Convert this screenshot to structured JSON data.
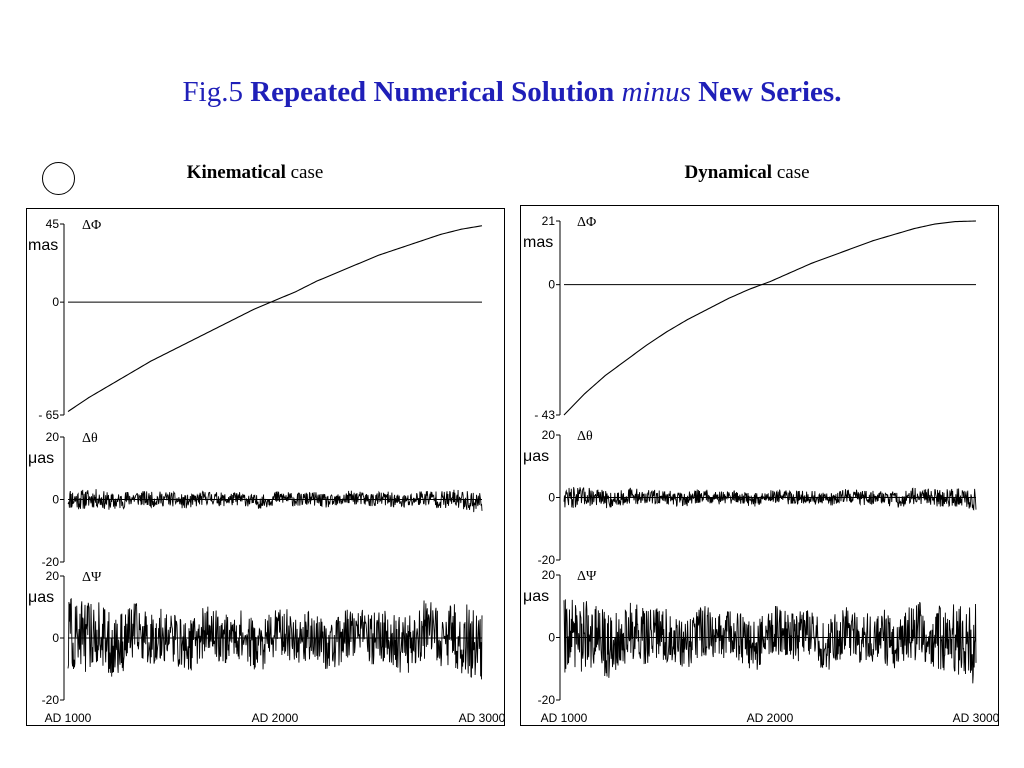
{
  "title": {
    "prefix": "Fig.5",
    "bold1": "Repeated Numerical Solution",
    "italic": "minus",
    "bold2": "New Series."
  },
  "cases": {
    "kinematical": {
      "bold": "Kinematical",
      "rest": "case"
    },
    "dynamical": {
      "bold": "Dynamical",
      "rest": "case"
    }
  },
  "chart_data": [
    {
      "type": "line",
      "panel": "Kinematical case",
      "series": [
        {
          "name": "ΔΦ",
          "unit": "mas",
          "ylim": [
            -65,
            45
          ],
          "yticks": [
            {
              "v": 45,
              "label": "45"
            },
            {
              "v": 0,
              "label": "0"
            },
            {
              "v": -65,
              "label": "- 65"
            }
          ],
          "x": [
            1000,
            1100,
            1200,
            1300,
            1400,
            1500,
            1600,
            1700,
            1800,
            1900,
            2000,
            2100,
            2200,
            2300,
            2400,
            2500,
            2600,
            2700,
            2800,
            2900,
            3000
          ],
          "y": [
            -63,
            -55,
            -48,
            -41,
            -34,
            -28,
            -22,
            -16,
            -10,
            -4,
            1,
            6,
            12,
            17,
            22,
            27,
            31,
            35,
            39,
            42,
            44
          ]
        },
        {
          "name": "Δθ",
          "unit": "μas",
          "ylim": [
            -20,
            20
          ],
          "noise_amplitude": 2.2,
          "yticks": [
            {
              "v": 20,
              "label": "20"
            },
            {
              "v": 0,
              "label": "0"
            },
            {
              "v": -20,
              "label": "-20"
            }
          ],
          "x": [
            1000,
            3000
          ],
          "y": [
            0,
            0
          ]
        },
        {
          "name": "ΔΨ",
          "unit": "μas",
          "ylim": [
            -20,
            20
          ],
          "noise_amplitude": 8,
          "yticks": [
            {
              "v": 20,
              "label": "20"
            },
            {
              "v": 0,
              "label": "0"
            },
            {
              "v": -20,
              "label": "-20"
            }
          ],
          "x": [
            1000,
            3000
          ],
          "y": [
            0,
            0
          ]
        }
      ],
      "xlim": [
        1000,
        3000
      ],
      "xticks": [
        {
          "v": 1000,
          "label": "AD 1000"
        },
        {
          "v": 2000,
          "label": "AD 2000"
        },
        {
          "v": 3000,
          "label": "AD 3000"
        }
      ]
    },
    {
      "type": "line",
      "panel": "Dynamical case",
      "series": [
        {
          "name": "ΔΦ",
          "unit": "mas",
          "ylim": [
            -43,
            21
          ],
          "yticks": [
            {
              "v": 21,
              "label": "21"
            },
            {
              "v": 0,
              "label": "0"
            },
            {
              "v": -43,
              "label": "- 43"
            }
          ],
          "x": [
            1000,
            1100,
            1200,
            1300,
            1400,
            1500,
            1600,
            1700,
            1800,
            1900,
            2000,
            2100,
            2200,
            2300,
            2400,
            2500,
            2600,
            2700,
            2800,
            2900,
            3000
          ],
          "y": [
            -43,
            -36,
            -30,
            -25,
            -20,
            -15.5,
            -11.5,
            -8,
            -4.5,
            -1.5,
            1,
            4,
            7,
            9.5,
            12,
            14.5,
            16.5,
            18.5,
            20,
            20.8,
            21
          ]
        },
        {
          "name": "Δθ",
          "unit": "μas",
          "ylim": [
            -20,
            20
          ],
          "noise_amplitude": 2.2,
          "yticks": [
            {
              "v": 20,
              "label": "20"
            },
            {
              "v": 0,
              "label": "0"
            },
            {
              "v": -20,
              "label": "-20"
            }
          ],
          "x": [
            1000,
            3000
          ],
          "y": [
            0,
            0
          ]
        },
        {
          "name": "ΔΨ",
          "unit": "μas",
          "ylim": [
            -20,
            20
          ],
          "noise_amplitude": 8,
          "yticks": [
            {
              "v": 20,
              "label": "20"
            },
            {
              "v": 0,
              "label": "0"
            },
            {
              "v": -20,
              "label": "-20"
            }
          ],
          "x": [
            1000,
            3000
          ],
          "y": [
            0,
            0
          ]
        }
      ],
      "xlim": [
        1000,
        3000
      ],
      "xticks": [
        {
          "v": 1000,
          "label": "AD 1000"
        },
        {
          "v": 2000,
          "label": "AD 2000"
        },
        {
          "v": 3000,
          "label": "AD 3000"
        }
      ]
    }
  ]
}
